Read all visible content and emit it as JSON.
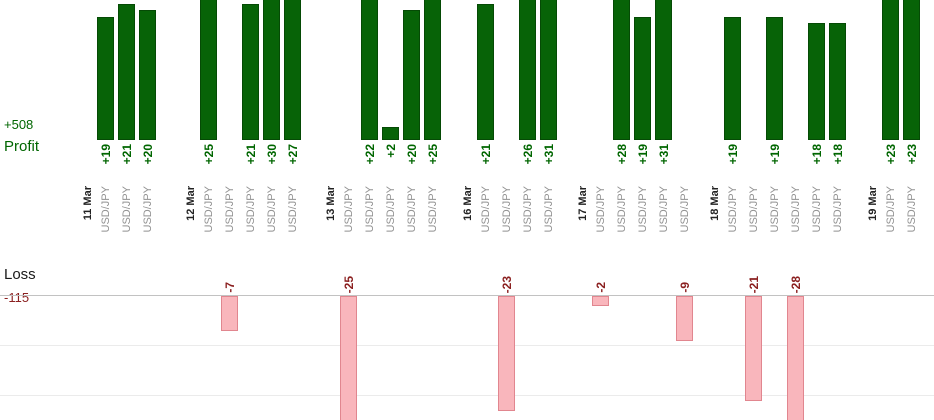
{
  "chart_data": {
    "type": "bar",
    "description": "Per-trade profit and loss bar chart, profits above in green, losses below in pink",
    "symbol": "USD/JPY",
    "profit_axis_label": "Profit",
    "profit_total_label": "+508",
    "profit_total": 508,
    "loss_axis_label": "Loss",
    "loss_total_label": "-115",
    "loss_total": -115,
    "groups": [
      {
        "date": "11 Mar",
        "trades": [
          19,
          21,
          20
        ]
      },
      {
        "date": "12 Mar",
        "trades": [
          25,
          -7,
          21,
          30,
          27
        ]
      },
      {
        "date": "13 Mar",
        "trades": [
          -25,
          22,
          2,
          20,
          25
        ]
      },
      {
        "date": "16 Mar",
        "trades": [
          21,
          -23,
          26,
          31
        ]
      },
      {
        "date": "17 Mar",
        "trades": [
          -2,
          28,
          19,
          31,
          -9
        ]
      },
      {
        "date": "18 Mar",
        "trades": [
          19,
          -21,
          19,
          -28,
          18,
          18
        ]
      },
      {
        "date": "19 Mar",
        "trades": [
          23,
          23
        ]
      }
    ],
    "layout_hints": {
      "legend": "none",
      "grid": "horizontal-light",
      "profit_bars_clipped_at_top": true,
      "profit_axis_visible_max": 21.5,
      "loss_axis_visible_max": 25
    },
    "colors": {
      "profit_bar": "#076307",
      "profit_bar_border": "#054a05",
      "profit_text": "#006600",
      "loss_bar_fill": "#f9b6bc",
      "loss_bar_border": "#e1868f",
      "loss_text": "#8b2020",
      "date_text": "#222222",
      "symbol_text": "#929292",
      "loss_name_text": "#1a1a1a"
    }
  }
}
